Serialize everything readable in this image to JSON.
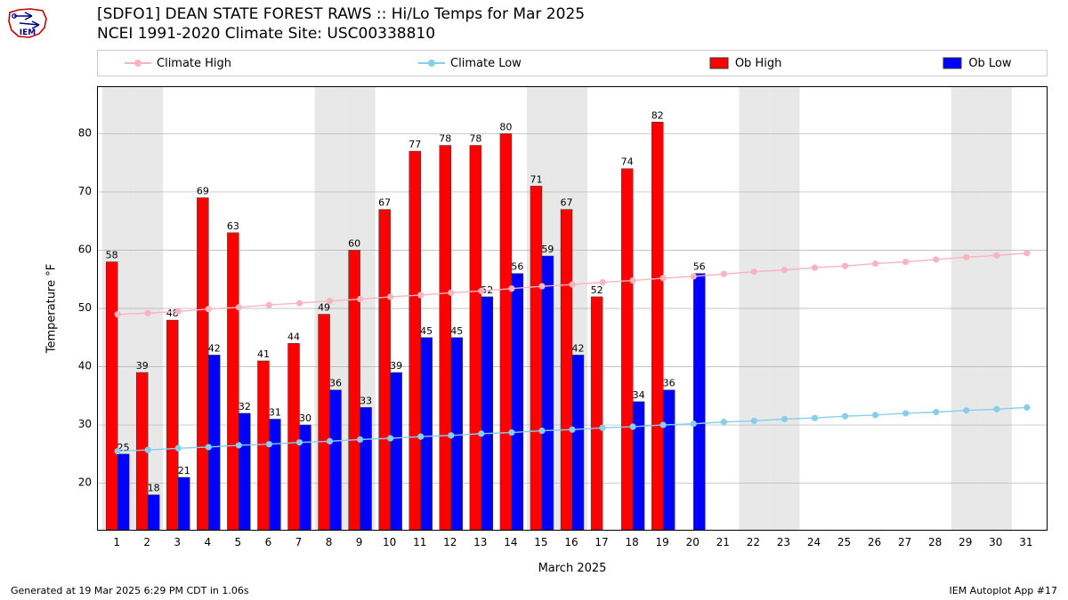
{
  "title_line1": "[SDFO1] DEAN STATE FOREST RAWS :: Hi/Lo Temps for Mar 2025",
  "title_line2": "NCEI 1991-2020 Climate Site: USC00338810",
  "ylabel": "Temperature °F",
  "xlabel": "March 2025",
  "footer_left": "Generated at 19 Mar 2025 6:29 PM CDT in 1.06s",
  "footer_right": "IEM Autoplot App #17",
  "legend": {
    "climate_high": "Climate High",
    "climate_low": "Climate Low",
    "ob_high": "Ob High",
    "ob_low": "Ob Low"
  },
  "chart": {
    "type": "bar_and_line",
    "ylim": [
      12,
      88
    ],
    "ytick_step": 10,
    "ytick_start": 20,
    "ytick_end": 80,
    "xlim": [
      0.35,
      31.65
    ],
    "days": [
      1,
      2,
      3,
      4,
      5,
      6,
      7,
      8,
      9,
      10,
      11,
      12,
      13,
      14,
      15,
      16,
      17,
      18,
      19,
      20,
      21,
      22,
      23,
      24,
      25,
      26,
      27,
      28,
      29,
      30,
      31
    ],
    "ob_high": [
      58,
      39,
      48,
      69,
      63,
      41,
      44,
      49,
      60,
      67,
      77,
      78,
      78,
      80,
      71,
      67,
      52,
      74,
      82,
      null,
      null,
      null,
      null,
      null,
      null,
      null,
      null,
      null,
      null,
      null,
      null
    ],
    "ob_low": [
      25,
      18,
      21,
      42,
      32,
      31,
      30,
      36,
      33,
      39,
      45,
      45,
      52,
      56,
      59,
      42,
      null,
      34,
      36,
      56,
      null,
      null,
      null,
      null,
      null,
      null,
      null,
      null,
      null,
      null,
      null
    ],
    "climate_high": [
      49.0,
      49.2,
      49.5,
      49.9,
      50.2,
      50.6,
      50.9,
      51.3,
      51.6,
      52.0,
      52.3,
      52.7,
      53.0,
      53.4,
      53.8,
      54.1,
      54.5,
      54.8,
      55.2,
      55.5,
      55.9,
      56.3,
      56.6,
      57.0,
      57.3,
      57.7,
      58.0,
      58.4,
      58.8,
      59.1,
      59.5
    ],
    "climate_low": [
      25.5,
      25.7,
      26.0,
      26.2,
      26.5,
      26.7,
      27.0,
      27.2,
      27.5,
      27.7,
      28.0,
      28.2,
      28.5,
      28.7,
      29.0,
      29.2,
      29.5,
      29.7,
      30.0,
      30.2,
      30.5,
      30.7,
      31.0,
      31.2,
      31.5,
      31.7,
      32.0,
      32.2,
      32.5,
      32.7,
      33.0
    ],
    "weekend_days": [
      1,
      2,
      8,
      9,
      15,
      16,
      22,
      23,
      29,
      30
    ],
    "colors": {
      "ob_high": "#ff0000",
      "ob_low": "#0000ff",
      "climate_high": "#f8b5c1",
      "climate_low": "#87ceeb",
      "grid": "#b0b0b0",
      "weekend_band": "#e8e8e8",
      "bar_edge": "#333333"
    },
    "bar_width": 0.38,
    "line_marker_r": 3.6,
    "line_width": 1.4,
    "label_fontsize": 11
  }
}
